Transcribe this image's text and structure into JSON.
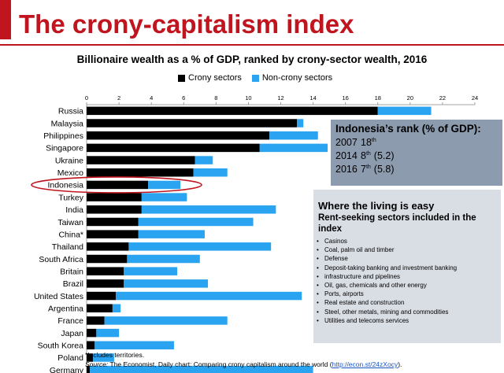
{
  "slide": {
    "title": "The crony-capitalism index"
  },
  "colors": {
    "accent": "#c0141e",
    "crony": "#000000",
    "noncrony": "#2aa3f0"
  },
  "chart_data": {
    "type": "bar",
    "orientation": "horizontal",
    "stacked": true,
    "title": "Billionaire wealth as a % of GDP, ranked by crony-sector wealth, 2016",
    "xlim": [
      0,
      24
    ],
    "xticks": [
      "0",
      "2",
      "4",
      "6",
      "8",
      "10",
      "12",
      "14",
      "16",
      "18",
      "20",
      "22",
      "24"
    ],
    "legend_position": "top",
    "categories": [
      "Russia",
      "Malaysia",
      "Philippines",
      "Singapore",
      "Ukraine",
      "Mexico",
      "Indonesia",
      "Turkey",
      "India",
      "Taiwan",
      "China*",
      "Thailand",
      "South Africa",
      "Britain",
      "Brazil",
      "United States",
      "Argentina",
      "France",
      "Japan",
      "South Korea",
      "Poland",
      "Germany"
    ],
    "series": [
      {
        "name": "Crony sectors",
        "values": [
          18.0,
          13.0,
          11.3,
          10.7,
          6.7,
          6.6,
          3.8,
          3.4,
          3.4,
          3.2,
          3.2,
          2.6,
          2.5,
          2.3,
          2.3,
          1.8,
          1.6,
          1.1,
          0.6,
          0.5,
          0.4,
          0.2
        ]
      },
      {
        "name": "Non-crony sectors",
        "values": [
          3.3,
          0.4,
          3.0,
          4.2,
          1.1,
          2.1,
          2.0,
          2.8,
          8.3,
          7.1,
          4.1,
          8.8,
          4.5,
          3.3,
          5.2,
          11.5,
          0.5,
          7.6,
          1.4,
          4.9,
          1.3,
          13.8
        ]
      }
    ],
    "highlighted_category": "Indonesia"
  },
  "rank_box": {
    "title": "Indonesia’s rank (% of GDP):",
    "rows": [
      {
        "year": "2007",
        "rank": "18",
        "suffix": "th",
        "extra": ""
      },
      {
        "year": "2014",
        "rank": "8",
        "suffix": "th",
        "extra": "(5.2)"
      },
      {
        "year": "2016",
        "rank": "7",
        "suffix": "th",
        "extra": "(5.8)"
      }
    ]
  },
  "living_box": {
    "title": "Where the living is easy",
    "subtitle": "Rent-seeking sectors included in the index",
    "items": [
      "Casinos",
      "Coal, palm oil and timber",
      "Defense",
      "Deposit-taking banking and investment banking",
      "infrastructure and pipelines",
      "Oil, gas, chemicals and other energy",
      "Ports, airports",
      "Real estate and construction",
      "Steel, other metals, mining and commodities",
      "Utilities and telecoms services"
    ]
  },
  "footer": {
    "footnote": "*Includes territories.",
    "source_label": "Source:",
    "source_text": " The Economist, Daily chart: Comparing crony capitalism around the world (",
    "source_link": "http://econ.st/24zXocy",
    "source_end": ")."
  }
}
